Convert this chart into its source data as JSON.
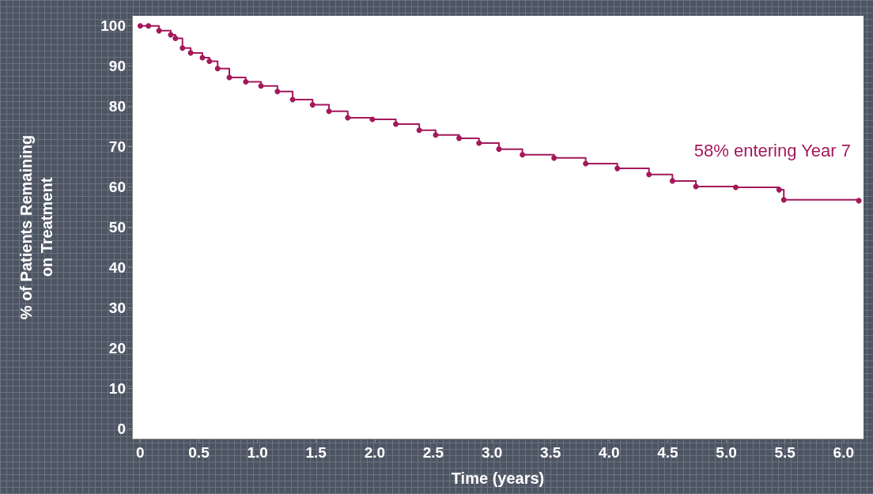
{
  "chart_data": {
    "type": "step",
    "xlabel": "Time (years)",
    "ylabel": "% of Patients Remaining\non Treatment",
    "annotations": [
      "58% entering Year 7"
    ],
    "x": [
      0,
      0.07,
      0.16,
      0.26,
      0.3,
      0.36,
      0.43,
      0.53,
      0.59,
      0.66,
      0.76,
      0.9,
      1.03,
      1.17,
      1.3,
      1.47,
      1.61,
      1.77,
      1.98,
      2.18,
      2.38,
      2.52,
      2.72,
      2.89,
      3.06,
      3.26,
      3.53,
      3.8,
      4.07,
      4.34,
      4.54,
      4.74,
      5.08,
      5.45,
      5.49,
      6.13
    ],
    "series": [
      {
        "color": "#a3195b",
        "values": [
          100,
          100,
          98.8,
          97.8,
          96.9,
          94.5,
          93.3,
          92.1,
          91.2,
          89.4,
          87.2,
          86.1,
          85.1,
          83.7,
          81.7,
          80.4,
          78.8,
          77.2,
          76.8,
          75.6,
          74.1,
          72.9,
          72.1,
          70.9,
          69.4,
          68.0,
          67.2,
          65.8,
          64.6,
          63.1,
          61.5,
          60.1,
          59.9,
          59.3,
          56.8,
          56.6
        ]
      }
    ],
    "xlim": [
      -0.07,
      6.17
    ],
    "ylim": [
      -2.5,
      102.5
    ],
    "xticks": [
      0,
      {
        "value": 0.5,
        "label": "0.5"
      },
      {
        "value": 1,
        "label": "1.0"
      },
      {
        "value": 1.5,
        "label": "1.5"
      },
      {
        "value": 2,
        "label": "2.0"
      },
      {
        "value": 2.5,
        "label": "2.5"
      },
      {
        "value": 3,
        "label": "3.0"
      },
      {
        "value": 3.5,
        "label": "3.5"
      },
      {
        "value": 4,
        "label": "4.0"
      },
      {
        "value": 4.5,
        "label": "4.5"
      },
      {
        "value": 5,
        "label": "5.0"
      },
      {
        "value": 5.5,
        "label": "5.5"
      },
      {
        "value": 6,
        "label": "6.0"
      }
    ],
    "yticks": [
      0,
      10,
      20,
      30,
      40,
      50,
      60,
      70,
      80,
      90,
      100
    ],
    "grid": false,
    "marker": "circle",
    "line_style": "solid"
  }
}
